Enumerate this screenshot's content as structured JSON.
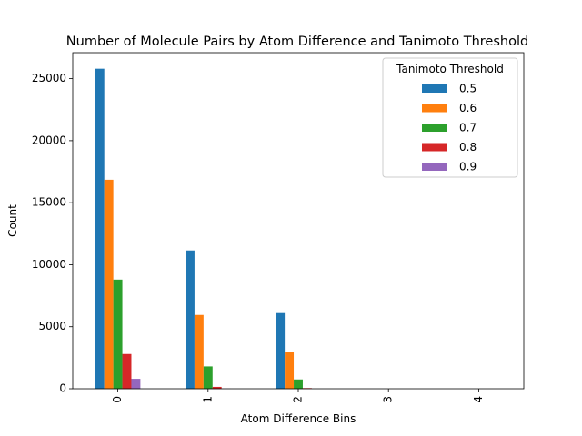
{
  "chart_data": {
    "type": "bar",
    "title": "Number of Molecule Pairs by Atom Difference and Tanimoto Threshold",
    "xlabel": "Atom Difference Bins",
    "ylabel": "Count",
    "categories": [
      "0",
      "1",
      "2",
      "3",
      "4"
    ],
    "ylim": [
      0,
      27095
    ],
    "yticks": [
      0,
      5000,
      10000,
      15000,
      20000,
      25000
    ],
    "grid": false,
    "legend": {
      "title": "Tanimoto Threshold",
      "position": "top-right"
    },
    "series": [
      {
        "name": "0.5",
        "color": "#1f77b4",
        "values": [
          25800,
          11150,
          6100,
          0,
          0
        ]
      },
      {
        "name": "0.6",
        "color": "#ff7f0e",
        "values": [
          16850,
          5950,
          2950,
          0,
          0
        ]
      },
      {
        "name": "0.7",
        "color": "#2ca02c",
        "values": [
          8800,
          1800,
          750,
          0,
          0
        ]
      },
      {
        "name": "0.8",
        "color": "#d62728",
        "values": [
          2800,
          150,
          50,
          0,
          0
        ]
      },
      {
        "name": "0.9",
        "color": "#9467bd",
        "values": [
          800,
          10,
          0,
          0,
          0
        ]
      }
    ]
  }
}
